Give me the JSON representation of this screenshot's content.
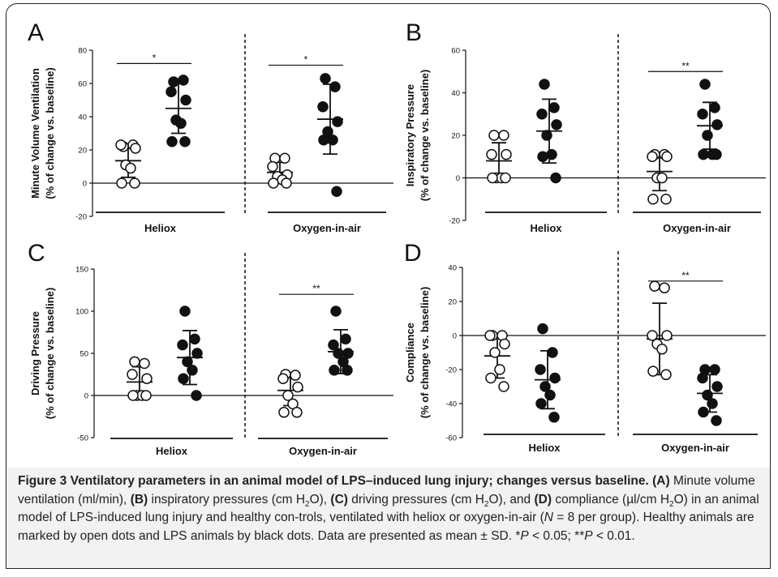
{
  "figure": {
    "caption_parts": [
      {
        "text": "Figure 3 Ventilatory parameters in an animal model of LPS–induced lung injury; changes versus baseline.",
        "style": "b"
      },
      {
        "text": " ",
        "style": ""
      },
      {
        "text": "(A)",
        "style": "b"
      },
      {
        "text": " Minute volume ventilation (ml/min), ",
        "style": ""
      },
      {
        "text": "(B)",
        "style": "b"
      },
      {
        "text": " inspiratory pressures (cm H",
        "style": ""
      },
      {
        "text": "2",
        "style": "sub"
      },
      {
        "text": "O), ",
        "style": ""
      },
      {
        "text": "(C)",
        "style": "b"
      },
      {
        "text": " driving pressures (cm H",
        "style": ""
      },
      {
        "text": "2",
        "style": "sub"
      },
      {
        "text": "O), and ",
        "style": ""
      },
      {
        "text": "(D)",
        "style": "b"
      },
      {
        "text": " compliance (µl/cm H",
        "style": ""
      },
      {
        "text": "2",
        "style": "sub"
      },
      {
        "text": "O) in an animal model of LPS-induced lung injury and healthy con-trols, ventilated with heliox or oxygen-in-air (",
        "style": ""
      },
      {
        "text": "N",
        "style": "i"
      },
      {
        "text": " = 8 per group). Healthy animals are marked by open dots and LPS animals by black dots. Data are presented as mean ± SD. *",
        "style": ""
      },
      {
        "text": "P",
        "style": "i"
      },
      {
        "text": " < 0.05; **",
        "style": ""
      },
      {
        "text": "P",
        "style": "i"
      },
      {
        "text": " < 0.01.",
        "style": ""
      }
    ]
  },
  "chart_data": [
    {
      "panel": "A",
      "type": "scatter",
      "ylabel_lines": [
        "Minute Volume Ventilation",
        "(% of change vs. baseline)"
      ],
      "ylim": [
        -20,
        80
      ],
      "yticks": [
        -20,
        0,
        20,
        40,
        60,
        80
      ],
      "groups": [
        "Heliox",
        "Oxygen-in-air"
      ],
      "series": [
        {
          "group": "Heliox",
          "kind": "open",
          "values": [
            22,
            23,
            23,
            21,
            11,
            9,
            0,
            0
          ],
          "mean": 13.5,
          "sd": 10
        },
        {
          "group": "Heliox",
          "kind": "filled",
          "values": [
            61,
            62,
            55,
            50,
            38,
            36,
            25,
            25
          ],
          "mean": 45,
          "sd": 15
        },
        {
          "group": "Oxygen-in-air",
          "kind": "open",
          "values": [
            15,
            15,
            10,
            5,
            4,
            2,
            0,
            0
          ],
          "mean": 6.5,
          "sd": 6
        },
        {
          "group": "Oxygen-in-air",
          "kind": "filled",
          "values": [
            63,
            58,
            46,
            37,
            31,
            26,
            26,
            -5
          ],
          "mean": 38.5,
          "sd": 21
        }
      ],
      "significance": [
        {
          "group": "Heliox",
          "label": "*",
          "y": 72
        },
        {
          "group": "Oxygen-in-air",
          "label": "*",
          "y": 71
        }
      ]
    },
    {
      "panel": "B",
      "type": "scatter",
      "ylabel_lines": [
        "Inspiratory Pressure",
        "(% of change vs. baseline)"
      ],
      "ylim": [
        -20,
        60
      ],
      "yticks": [
        -20,
        0,
        20,
        40,
        60
      ],
      "groups": [
        "Heliox",
        "Oxygen-in-air"
      ],
      "series": [
        {
          "group": "Heliox",
          "kind": "open",
          "values": [
            20,
            20,
            11,
            11,
            0,
            0,
            0,
            0
          ],
          "mean": 8,
          "sd": 8.5
        },
        {
          "group": "Heliox",
          "kind": "filled",
          "values": [
            44,
            33,
            30,
            25,
            20,
            11,
            10,
            0
          ],
          "mean": 22,
          "sd": 15
        },
        {
          "group": "Oxygen-in-air",
          "kind": "open",
          "values": [
            11,
            11,
            10,
            10,
            0,
            0,
            -10,
            -10
          ],
          "mean": 3,
          "sd": 9
        },
        {
          "group": "Oxygen-in-air",
          "kind": "filled",
          "values": [
            44,
            33,
            30,
            25,
            20,
            11,
            11,
            11
          ],
          "mean": 24.5,
          "sd": 11
        }
      ],
      "significance": [
        {
          "group": "Oxygen-in-air",
          "label": "**",
          "y": 50
        }
      ]
    },
    {
      "panel": "C",
      "type": "scatter",
      "ylabel_lines": [
        "Driving Pressure",
        "(% of change vs. baseline)"
      ],
      "ylim": [
        -50,
        150
      ],
      "yticks": [
        -50,
        0,
        50,
        100,
        150
      ],
      "groups": [
        "Heliox",
        "Oxygen-in-air"
      ],
      "series": [
        {
          "group": "Heliox",
          "kind": "open",
          "values": [
            40,
            38,
            25,
            20,
            0,
            0,
            0,
            0
          ],
          "mean": 16,
          "sd": 18
        },
        {
          "group": "Heliox",
          "kind": "filled",
          "values": [
            100,
            67,
            60,
            50,
            40,
            30,
            20,
            0
          ],
          "mean": 45,
          "sd": 32
        },
        {
          "group": "Oxygen-in-air",
          "kind": "open",
          "values": [
            25,
            24,
            20,
            10,
            0,
            -10,
            -20,
            -20
          ],
          "mean": 6,
          "sd": 18
        },
        {
          "group": "Oxygen-in-air",
          "kind": "filled",
          "values": [
            100,
            67,
            60,
            50,
            50,
            40,
            30,
            30
          ],
          "mean": 52,
          "sd": 26
        }
      ],
      "significance": [
        {
          "group": "Oxygen-in-air",
          "label": "**",
          "y": 120
        }
      ]
    },
    {
      "panel": "D",
      "type": "scatter",
      "ylabel_lines": [
        "Compliance",
        "(% of change vs. baseline)"
      ],
      "ylim": [
        -60,
        40
      ],
      "yticks": [
        -60,
        -40,
        -20,
        0,
        20,
        40
      ],
      "groups": [
        "Heliox",
        "Oxygen-in-air"
      ],
      "series": [
        {
          "group": "Heliox",
          "kind": "open",
          "values": [
            0,
            0,
            0,
            -5,
            -10,
            -20,
            -25,
            -30
          ],
          "mean": -12,
          "sd": 13
        },
        {
          "group": "Heliox",
          "kind": "filled",
          "values": [
            4,
            -10,
            -20,
            -25,
            -30,
            -35,
            -40,
            -48
          ],
          "mean": -26,
          "sd": 17
        },
        {
          "group": "Oxygen-in-air",
          "kind": "open",
          "values": [
            29,
            28,
            0,
            0,
            -5,
            -8,
            -21,
            -23
          ],
          "mean": -2,
          "sd": 21
        },
        {
          "group": "Oxygen-in-air",
          "kind": "filled",
          "values": [
            -20,
            -20,
            -25,
            -30,
            -35,
            -40,
            -45,
            -50
          ],
          "mean": -34,
          "sd": 11
        }
      ],
      "significance": [
        {
          "group": "Oxygen-in-air",
          "label": "**",
          "y": 32
        }
      ]
    }
  ]
}
